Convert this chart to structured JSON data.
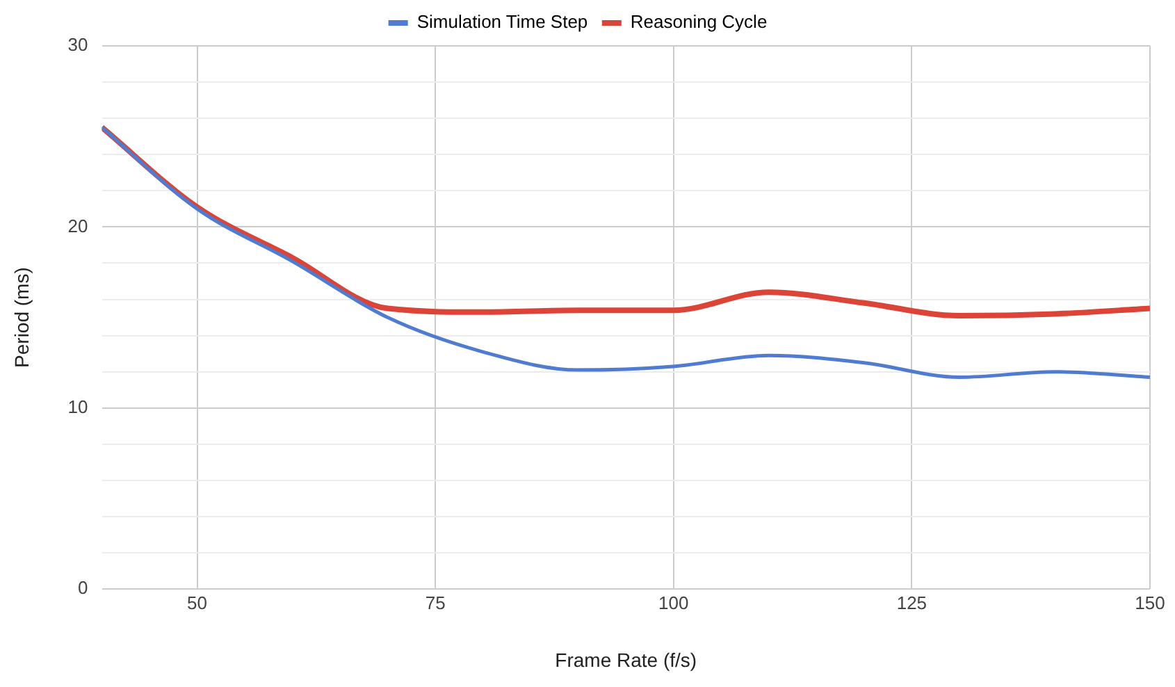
{
  "chart_data": {
    "type": "line",
    "xlabel": "Frame Rate (f/s)",
    "ylabel": "Period (ms)",
    "x": [
      40,
      50,
      60,
      70,
      80,
      90,
      100,
      110,
      120,
      130,
      140,
      150
    ],
    "series": [
      {
        "name": "Simulation Time Step",
        "color": "#4f7bd0",
        "values": [
          25.5,
          21.0,
          18.1,
          15.0,
          13.1,
          12.1,
          12.3,
          12.9,
          12.5,
          11.7,
          12.0,
          11.7
        ]
      },
      {
        "name": "Reasoning Cycle",
        "color": "#db4437",
        "values": [
          25.5,
          21.1,
          18.3,
          15.5,
          15.3,
          15.4,
          15.4,
          16.4,
          15.8,
          15.1,
          15.2,
          15.5
        ]
      }
    ],
    "xlim": [
      40,
      150
    ],
    "xticks": [
      50,
      75,
      100,
      125,
      150
    ],
    "ylim": [
      0,
      30
    ],
    "yticks": [
      0,
      {
        "value": 2,
        "label": null
      },
      {
        "value": 4,
        "label": null
      },
      {
        "value": 6,
        "label": null
      },
      {
        "value": 8,
        "label": null
      },
      10,
      {
        "value": 12,
        "label": null
      },
      {
        "value": 14,
        "label": null
      },
      {
        "value": 16,
        "label": null
      },
      {
        "value": 18,
        "label": null
      },
      20,
      {
        "value": 22,
        "label": null
      },
      {
        "value": 24,
        "label": null
      },
      {
        "value": 26,
        "label": null
      },
      {
        "value": 28,
        "label": null
      },
      30
    ],
    "grid": true,
    "legend": "top",
    "marker": "none",
    "line_style": "solid"
  }
}
